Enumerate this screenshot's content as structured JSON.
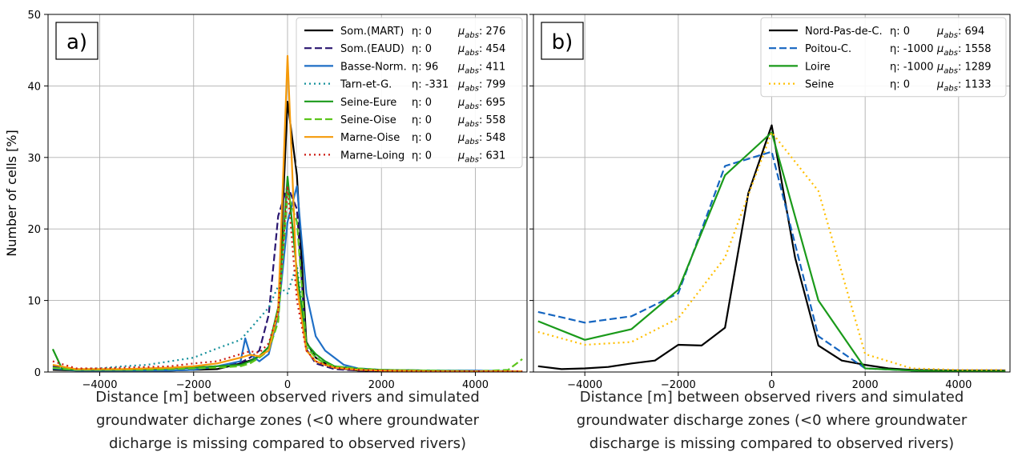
{
  "colors": {
    "black": "#000000",
    "indigo": "#2a1670",
    "blue": "#1f6fc6",
    "teal": "#14909b",
    "green": "#1a9a1a",
    "lime": "#5cc41c",
    "orange": "#f59a09",
    "red": "#cc1a12",
    "darkblue": "#1565c0",
    "gold": "#ffbf00"
  },
  "chart_data": [
    {
      "type": "line",
      "panel_label": "a)",
      "ylabel": "Number of cells [%]",
      "xlabel": [
        "Distance [m] between observed rivers and simulated",
        "groundwater dicharge zones (<0 where groundwater",
        "dicharge is missing compared to observed rivers)"
      ],
      "xlim": [
        -5100,
        5100
      ],
      "ylim": [
        0,
        50
      ],
      "xticks": [
        -4000,
        -2000,
        0,
        2000,
        4000
      ],
      "xtick_labels": [
        "−4000",
        "−2000",
        "0",
        "2000",
        "4000"
      ],
      "yticks": [
        0,
        10,
        20,
        30,
        40,
        50
      ],
      "ytick_labels": [
        "0",
        "10",
        "20",
        "30",
        "40",
        "50"
      ],
      "grid": true,
      "legend_position": "top-right",
      "series": [
        {
          "name": "Som.(MART)",
          "eta": "η: 0",
          "mu": "276",
          "color": "black",
          "dash": "solid",
          "x": [
            -5000,
            -4500,
            -4000,
            -3500,
            -3000,
            -2500,
            -2000,
            -1500,
            -1000,
            -800,
            -600,
            -400,
            -200,
            0,
            200,
            400,
            600,
            800,
            1000,
            1500,
            2000,
            3000,
            4000,
            5000
          ],
          "y": [
            0.3,
            0.2,
            0.2,
            0.2,
            0.2,
            0.2,
            0.3,
            0.4,
            1.2,
            1.6,
            2.2,
            3.5,
            8.2,
            37.8,
            27.5,
            4.2,
            2.0,
            1.2,
            0.6,
            0.2,
            0.1,
            0.1,
            0.1,
            0.1
          ]
        },
        {
          "name": "Som.(EAUD)",
          "eta": "η: 0",
          "mu": "454",
          "color": "indigo",
          "dash": "dashed",
          "x": [
            -5000,
            -4500,
            -4000,
            -3500,
            -3000,
            -2500,
            -2000,
            -1500,
            -1000,
            -800,
            -600,
            -400,
            -200,
            0,
            200,
            400,
            600,
            800,
            1000,
            1500,
            2000,
            3000,
            4000,
            5000
          ],
          "y": [
            0.8,
            0.3,
            0.3,
            0.3,
            0.3,
            0.4,
            0.6,
            0.8,
            1.3,
            2.0,
            3.0,
            8.0,
            21.8,
            26.0,
            22.8,
            3.2,
            1.2,
            0.8,
            0.4,
            0.2,
            0.1,
            0.1,
            0.1,
            0.1
          ]
        },
        {
          "name": "Basse-Norm.",
          "eta": "η: 96",
          "mu": "411",
          "color": "blue",
          "dash": "solid",
          "x": [
            -5000,
            -4500,
            -4000,
            -3500,
            -3000,
            -2500,
            -2000,
            -1500,
            -1000,
            -900,
            -800,
            -600,
            -400,
            -200,
            0,
            200,
            400,
            600,
            800,
            1000,
            1200,
            1500,
            2000,
            3000,
            4000,
            5000
          ],
          "y": [
            0.5,
            0.2,
            0.2,
            0.2,
            0.2,
            0.2,
            0.3,
            0.8,
            1.5,
            4.7,
            2.5,
            1.5,
            2.5,
            8.0,
            21.0,
            26.0,
            11.0,
            5.0,
            3.0,
            2.0,
            1.0,
            0.5,
            0.3,
            0.2,
            0.2,
            0.1
          ]
        },
        {
          "name": "Tarn-et-G.",
          "eta": "η: -331",
          "mu": "799",
          "color": "teal",
          "dash": "dotted",
          "x": [
            -5000,
            -4500,
            -4000,
            -3500,
            -3000,
            -2500,
            -2000,
            -1500,
            -1000,
            -800,
            -600,
            -400,
            -200,
            0,
            200,
            400,
            600,
            800,
            1000,
            1500,
            2000,
            3000,
            4000,
            5000
          ],
          "y": [
            0.5,
            0.4,
            0.5,
            0.8,
            1.0,
            1.5,
            2.0,
            3.3,
            4.5,
            6.0,
            7.5,
            9.0,
            12.0,
            11.0,
            15.0,
            4.0,
            2.0,
            1.5,
            0.8,
            0.5,
            0.3,
            0.2,
            0.1,
            0.1
          ]
        },
        {
          "name": "Seine-Eure",
          "eta": "η: 0",
          "mu": "695",
          "color": "green",
          "dash": "solid",
          "x": [
            -5000,
            -4800,
            -4500,
            -4000,
            -3500,
            -3000,
            -2500,
            -2000,
            -1500,
            -1000,
            -800,
            -600,
            -400,
            -200,
            0,
            200,
            400,
            600,
            800,
            1000,
            1500,
            2000,
            3000,
            4000,
            5000
          ],
          "y": [
            3.2,
            0.4,
            0.3,
            0.3,
            0.3,
            0.4,
            0.5,
            0.6,
            0.8,
            1.0,
            1.5,
            2.2,
            3.5,
            9.0,
            27.3,
            14.0,
            4.0,
            2.5,
            1.5,
            0.8,
            0.4,
            0.3,
            0.2,
            0.1,
            0.1
          ]
        },
        {
          "name": "Seine-Oise",
          "eta": "η: 0",
          "mu": "558",
          "color": "lime",
          "dash": "dashed",
          "x": [
            -5000,
            -4500,
            -4000,
            -3500,
            -3000,
            -2500,
            -2000,
            -1500,
            -1000,
            -800,
            -600,
            -400,
            -200,
            0,
            200,
            400,
            600,
            800,
            1000,
            1500,
            2000,
            3000,
            4000,
            4700,
            5000
          ],
          "y": [
            0.6,
            0.3,
            0.3,
            0.3,
            0.3,
            0.4,
            0.5,
            0.6,
            0.8,
            1.2,
            2.0,
            3.0,
            7.0,
            25.0,
            21.0,
            3.5,
            2.0,
            1.2,
            0.8,
            0.5,
            0.3,
            0.2,
            0.1,
            0.3,
            1.8
          ]
        },
        {
          "name": "Marne-Oise",
          "eta": "η: 0",
          "mu": "548",
          "color": "orange",
          "dash": "solid",
          "x": [
            -5000,
            -4500,
            -4000,
            -3500,
            -3000,
            -2500,
            -2000,
            -1500,
            -1000,
            -800,
            -600,
            -400,
            -200,
            0,
            200,
            400,
            600,
            800,
            1000,
            1500,
            2000,
            3000,
            4000,
            5000
          ],
          "y": [
            1.0,
            0.4,
            0.4,
            0.4,
            0.5,
            0.6,
            0.8,
            1.2,
            2.0,
            2.4,
            2.2,
            3.0,
            8.5,
            44.2,
            12.0,
            3.0,
            1.5,
            1.0,
            0.6,
            0.3,
            0.2,
            0.1,
            0.1,
            0.1
          ]
        },
        {
          "name": "Marne-Loing",
          "eta": "η: 0",
          "mu": "631",
          "color": "red",
          "dash": "dotted",
          "x": [
            -5000,
            -4500,
            -4000,
            -3500,
            -3000,
            -2500,
            -2000,
            -1500,
            -1000,
            -800,
            -600,
            -400,
            -200,
            0,
            200,
            400,
            600,
            800,
            1000,
            1500,
            2000,
            3000,
            4000,
            5000
          ],
          "y": [
            1.5,
            0.5,
            0.5,
            0.6,
            0.7,
            0.8,
            1.2,
            1.5,
            2.5,
            2.9,
            2.7,
            4.0,
            8.5,
            26.0,
            10.0,
            3.0,
            1.5,
            1.0,
            0.6,
            0.3,
            0.2,
            0.1,
            0.1,
            0.1
          ]
        }
      ]
    },
    {
      "type": "line",
      "panel_label": "b)",
      "ylabel": "",
      "xlabel": [
        "Distance [m] between observed rivers and simulated",
        "groundwater discharge zones (<0 where groundwater",
        "discharge is missing compared to observed rivers)"
      ],
      "xlim": [
        -5100,
        5100
      ],
      "ylim": [
        0,
        50
      ],
      "xticks": [
        -4000,
        -2000,
        0,
        2000,
        4000
      ],
      "xtick_labels": [
        "−4000",
        "−2000",
        "0",
        "2000",
        "4000"
      ],
      "yticks": [
        0,
        10,
        20,
        30,
        40,
        50
      ],
      "ytick_labels": [],
      "grid": true,
      "legend_position": "top-right",
      "series": [
        {
          "name": "Nord-Pas-de-C.",
          "eta": "η: 0",
          "mu": "694",
          "color": "black",
          "dash": "solid",
          "x": [
            -5000,
            -4500,
            -4000,
            -3500,
            -3000,
            -2500,
            -2000,
            -1500,
            -1000,
            -500,
            0,
            500,
            1000,
            1500,
            2000,
            2500,
            3000,
            4000,
            5000
          ],
          "y": [
            0.8,
            0.4,
            0.5,
            0.7,
            1.2,
            1.6,
            3.8,
            3.7,
            6.2,
            25.0,
            34.5,
            16.0,
            3.7,
            1.6,
            1.0,
            0.5,
            0.3,
            0.2,
            0.2
          ]
        },
        {
          "name": "Poitou-C.",
          "eta": "η: -1000",
          "mu": "1558",
          "color": "darkblue",
          "dash": "dashed",
          "x": [
            -5000,
            -4000,
            -3000,
            -2000,
            -1000,
            0,
            1000,
            2000,
            3000,
            4000,
            5000
          ],
          "y": [
            8.4,
            6.9,
            7.8,
            11.0,
            28.8,
            30.8,
            5.0,
            0.5,
            0.2,
            0.1,
            0.1
          ]
        },
        {
          "name": "Loire",
          "eta": "η: -1000",
          "mu": "1289",
          "color": "green",
          "dash": "solid",
          "x": [
            -5000,
            -4000,
            -3000,
            -2000,
            -1000,
            0,
            1000,
            2000,
            3000,
            4000,
            5000
          ],
          "y": [
            7.1,
            4.5,
            6.0,
            11.5,
            27.5,
            33.5,
            10.0,
            0.5,
            0.2,
            0.1,
            0.1
          ]
        },
        {
          "name": "Seine",
          "eta": "η: 0",
          "mu": "1133",
          "color": "gold",
          "dash": "dotted",
          "x": [
            -5000,
            -4000,
            -3000,
            -2000,
            -1000,
            0,
            1000,
            2000,
            3000,
            4000,
            5000
          ],
          "y": [
            5.6,
            3.8,
            4.2,
            7.5,
            16.0,
            33.5,
            25.3,
            2.5,
            0.5,
            0.3,
            0.3
          ]
        }
      ]
    }
  ]
}
